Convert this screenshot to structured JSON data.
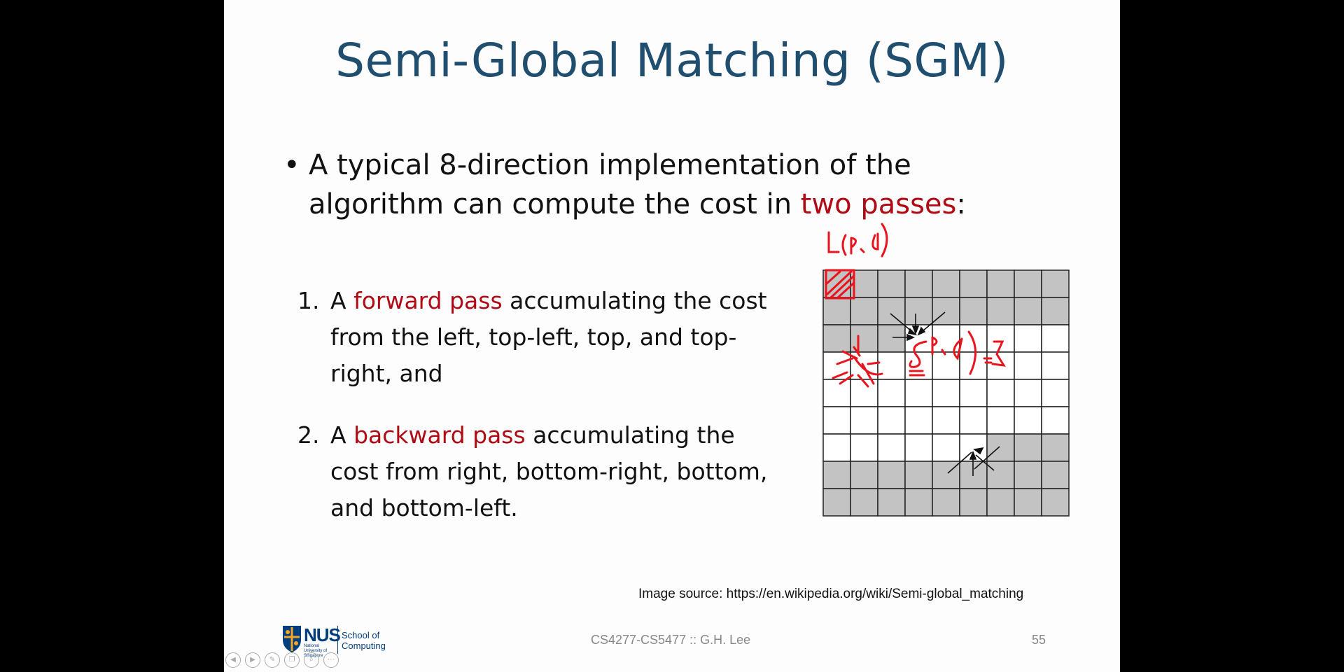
{
  "slide": {
    "title": "Semi-Global Matching (SGM)",
    "bullet": {
      "line1_a": "A typical 8-direction implementation of the",
      "line2_a": "algorithm can compute the cost in ",
      "line2_highlight": "two passes",
      "line2_b": ":"
    },
    "items": [
      {
        "num": "1.",
        "line1_a": "A ",
        "line1_highlight": "forward pass",
        "line1_b": " accumulating the cost",
        "line2": "from the left, top-left, top, and top-",
        "line3": "right, and"
      },
      {
        "num": "2.",
        "line1_a": "A ",
        "line1_highlight": "backward pass",
        "line1_b": " accumulating the",
        "line2": "cost from right, bottom-right, bottom,",
        "line3": "and bottom-left."
      }
    ],
    "image_source": "Image source: https://en.wikipedia.org/wiki/Semi-global_matching",
    "footer": {
      "course": "CS4277-CS5477 :: G.H. Lee",
      "page": "55",
      "logo_text": "NUS",
      "logo_sub": "National University of Singapore",
      "school": "School of Computing"
    },
    "annotations": {
      "top": "L(p,d)",
      "mid": "S(p,d)",
      "right": "=Σ"
    }
  },
  "colors": {
    "title": "#1f4e6e",
    "highlight": "#b00a14",
    "ink": "#e8141e",
    "grid_gray": "#c3c3c3"
  },
  "controls": [
    "back-icon",
    "forward-icon",
    "pen-icon",
    "copy-icon",
    "zoom-icon",
    "more-icon"
  ]
}
